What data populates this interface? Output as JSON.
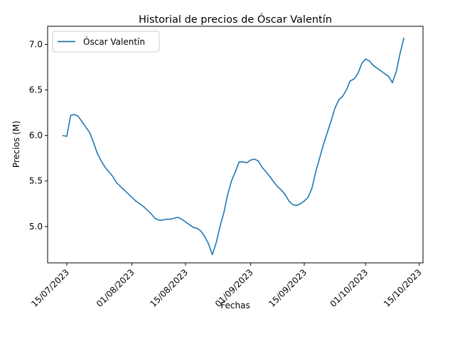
{
  "chart_data": {
    "type": "line",
    "title": "Historial de precios de Óscar Valentín",
    "xlabel": "Fechas",
    "ylabel": "Precios (M)",
    "x_tick_labels": [
      "15/07/2023",
      "01/08/2023",
      "15/08/2023",
      "01/09/2023",
      "15/09/2023",
      "01/10/2023",
      "15/10/2023"
    ],
    "y_ticks": [
      5.0,
      5.5,
      6.0,
      6.5,
      7.0
    ],
    "y_tick_labels": [
      "5.0",
      "5.5",
      "6.0",
      "6.5",
      "7.0"
    ],
    "xlim": [
      "2023-07-10",
      "2023-10-16"
    ],
    "ylim": [
      4.6,
      7.2
    ],
    "grid": false,
    "legend_position": "upper-left",
    "line_color": "#1f77b4",
    "series": [
      {
        "name": "Óscar Valentín",
        "x": [
          "2023-07-14",
          "2023-07-15",
          "2023-07-16",
          "2023-07-17",
          "2023-07-18",
          "2023-07-19",
          "2023-07-20",
          "2023-07-21",
          "2023-07-22",
          "2023-07-23",
          "2023-07-24",
          "2023-07-25",
          "2023-07-26",
          "2023-07-27",
          "2023-07-28",
          "2023-07-29",
          "2023-07-30",
          "2023-07-31",
          "2023-08-01",
          "2023-08-02",
          "2023-08-03",
          "2023-08-04",
          "2023-08-05",
          "2023-08-06",
          "2023-08-07",
          "2023-08-08",
          "2023-08-09",
          "2023-08-10",
          "2023-08-11",
          "2023-08-12",
          "2023-08-13",
          "2023-08-14",
          "2023-08-15",
          "2023-08-16",
          "2023-08-17",
          "2023-08-18",
          "2023-08-19",
          "2023-08-20",
          "2023-08-21",
          "2023-08-22",
          "2023-08-23",
          "2023-08-24",
          "2023-08-25",
          "2023-08-26",
          "2023-08-27",
          "2023-08-28",
          "2023-08-29",
          "2023-08-30",
          "2023-08-31",
          "2023-09-01",
          "2023-09-02",
          "2023-09-03",
          "2023-09-04",
          "2023-09-05",
          "2023-09-06",
          "2023-09-07",
          "2023-09-08",
          "2023-09-09",
          "2023-09-10",
          "2023-09-11",
          "2023-09-12",
          "2023-09-13",
          "2023-09-14",
          "2023-09-15",
          "2023-09-16",
          "2023-09-17",
          "2023-09-18",
          "2023-09-19",
          "2023-09-20",
          "2023-09-21",
          "2023-09-22",
          "2023-09-23",
          "2023-09-24",
          "2023-09-25",
          "2023-09-26",
          "2023-09-27",
          "2023-09-28",
          "2023-09-29",
          "2023-09-30",
          "2023-10-01",
          "2023-10-02",
          "2023-10-03",
          "2023-10-04",
          "2023-10-05",
          "2023-10-06",
          "2023-10-07",
          "2023-10-08",
          "2023-10-09",
          "2023-10-10",
          "2023-10-11"
        ],
        "y": [
          6.0,
          5.99,
          6.22,
          6.23,
          6.21,
          6.15,
          6.09,
          6.03,
          5.92,
          5.8,
          5.72,
          5.65,
          5.6,
          5.55,
          5.48,
          5.44,
          5.4,
          5.36,
          5.32,
          5.28,
          5.25,
          5.22,
          5.18,
          5.14,
          5.09,
          5.07,
          5.07,
          5.08,
          5.08,
          5.09,
          5.1,
          5.08,
          5.05,
          5.02,
          4.99,
          4.98,
          4.95,
          4.89,
          4.81,
          4.69,
          4.82,
          5.0,
          5.15,
          5.35,
          5.5,
          5.6,
          5.71,
          5.71,
          5.7,
          5.73,
          5.74,
          5.72,
          5.65,
          5.6,
          5.55,
          5.49,
          5.44,
          5.4,
          5.35,
          5.28,
          5.24,
          5.23,
          5.25,
          5.28,
          5.32,
          5.42,
          5.6,
          5.75,
          5.9,
          6.03,
          6.16,
          6.3,
          6.39,
          6.43,
          6.5,
          6.6,
          6.62,
          6.68,
          6.79,
          6.84,
          6.82,
          6.77,
          6.74,
          6.71,
          6.68,
          6.65,
          6.58,
          6.7,
          6.9,
          7.07
        ]
      }
    ]
  }
}
